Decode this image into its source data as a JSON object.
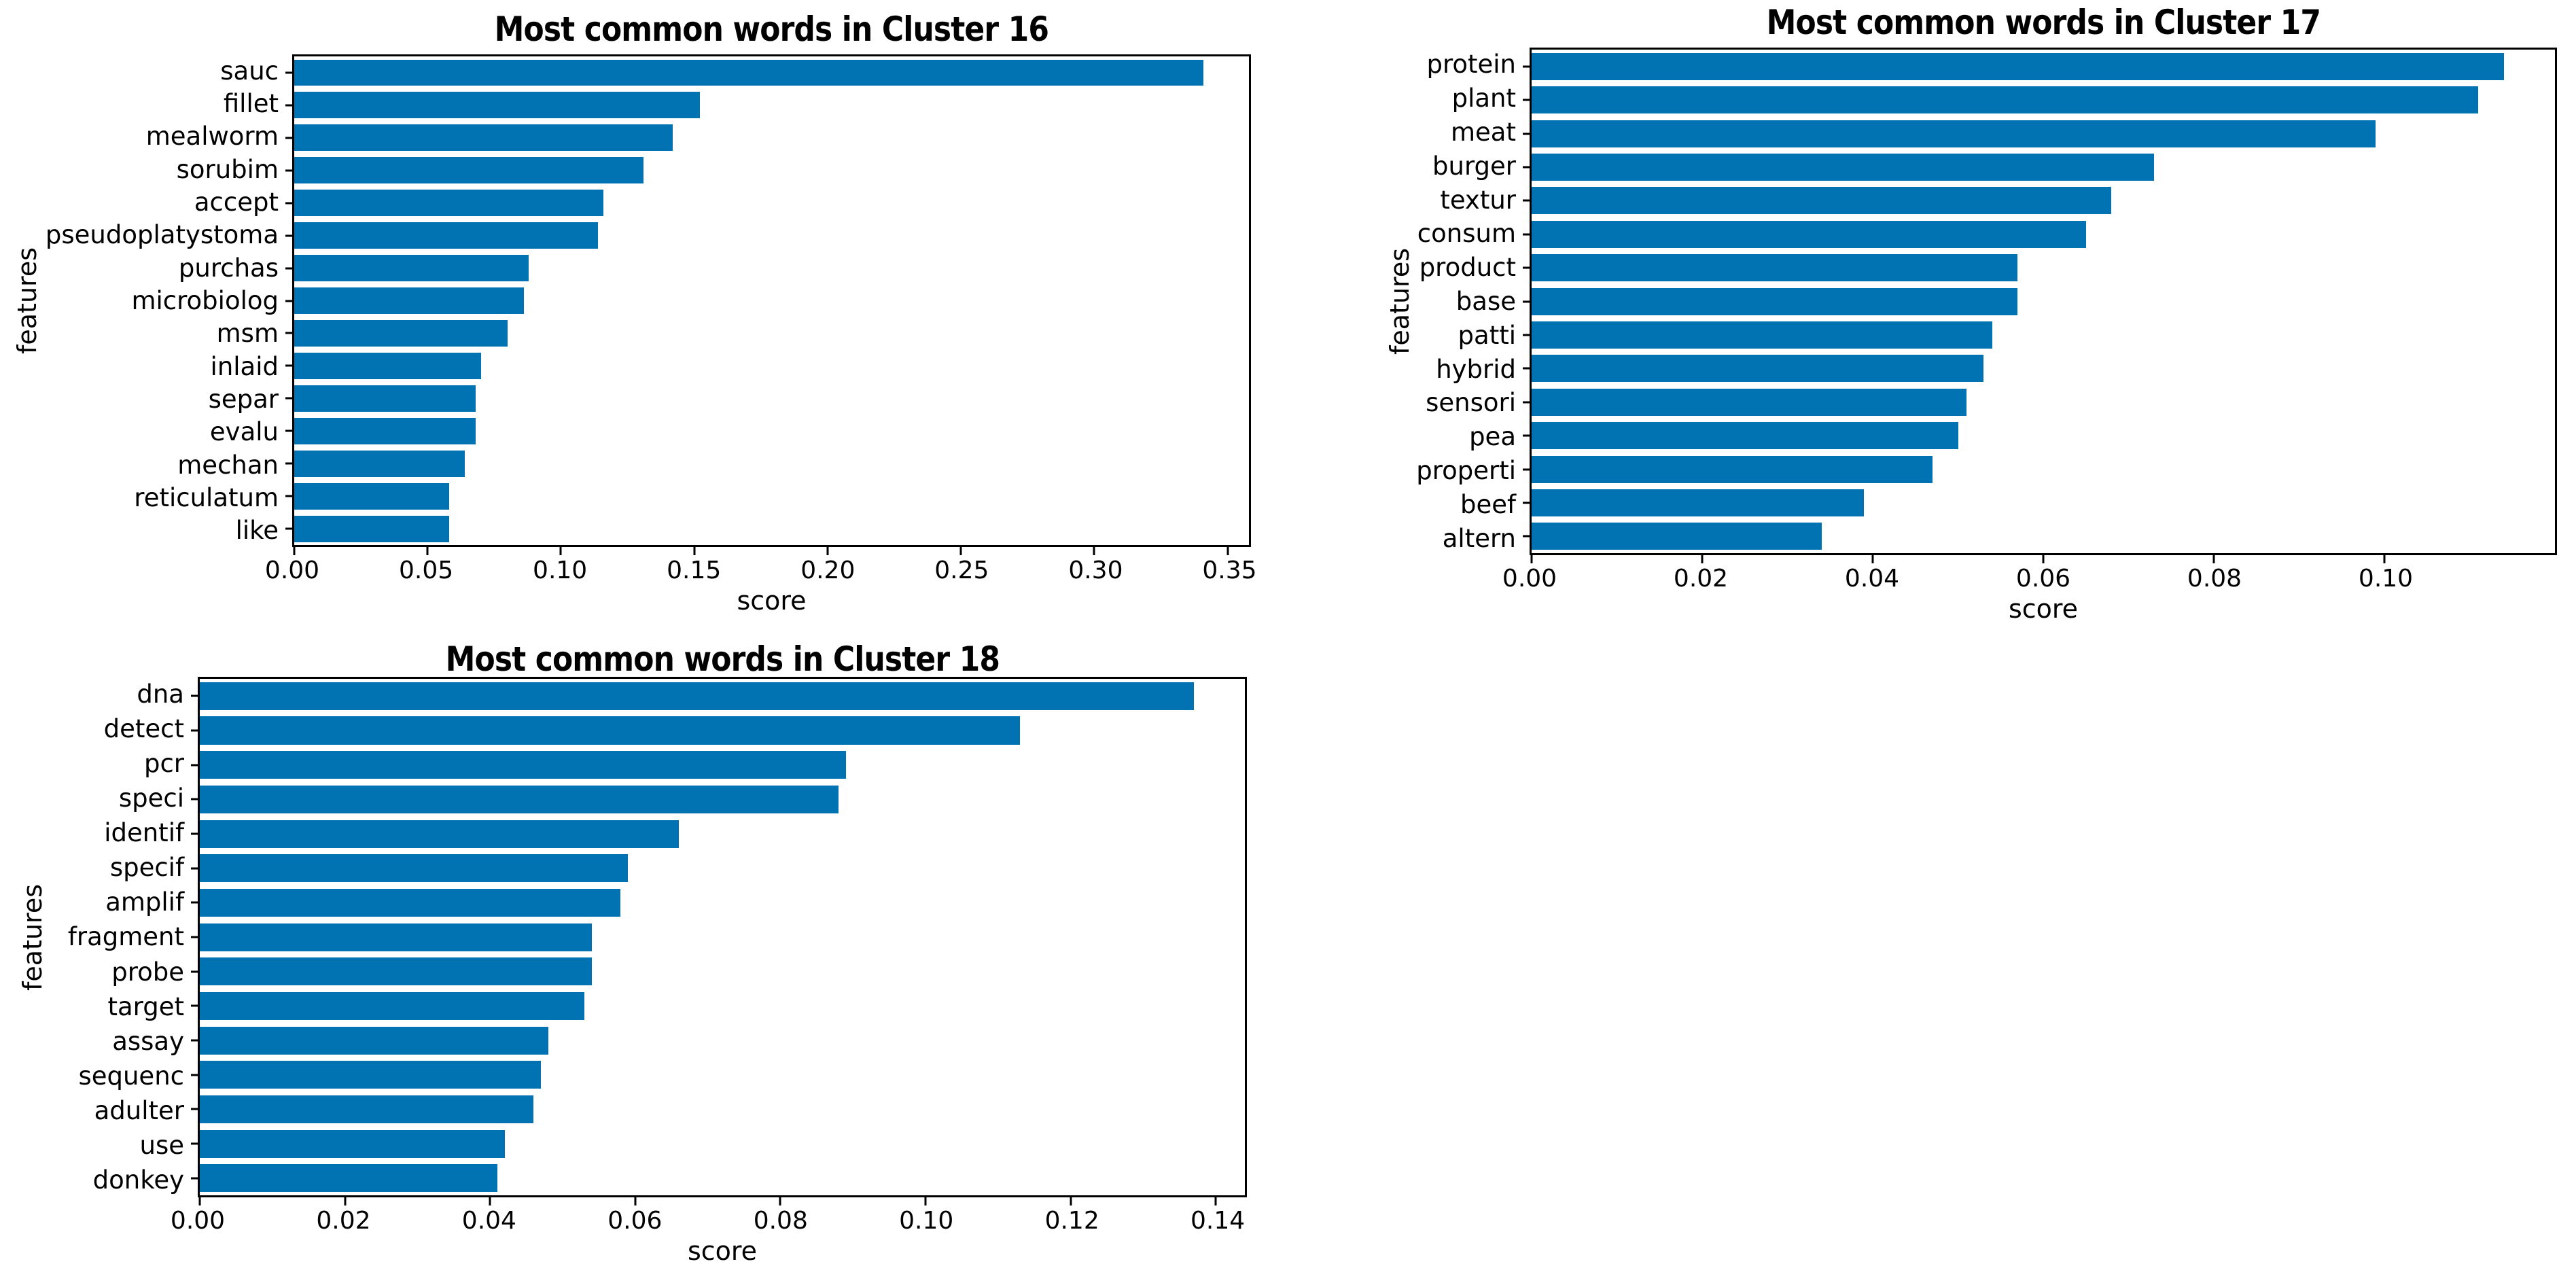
{
  "figure": {
    "background": "#ffffff",
    "text_color": "#000000",
    "bar_color": "#0173b2"
  },
  "chart_data": [
    {
      "type": "bar",
      "orientation": "horizontal",
      "position": "top-left",
      "title": "Most common words in Cluster 16",
      "xlabel": "score",
      "ylabel": "features",
      "bar_color": "#0173b2",
      "grid": false,
      "legend": null,
      "categories": [
        "sauc",
        "fillet",
        "mealworm",
        "sorubim",
        "accept",
        "pseudoplatystoma",
        "purchas",
        "microbiolog",
        "msm",
        "inlaid",
        "separ",
        "evalu",
        "mechan",
        "reticulatum",
        "like"
      ],
      "values": [
        0.341,
        0.152,
        0.142,
        0.131,
        0.116,
        0.114,
        0.088,
        0.086,
        0.08,
        0.07,
        0.068,
        0.068,
        0.064,
        0.058,
        0.058
      ],
      "xlim": [
        0,
        0.358
      ],
      "xticks": [
        "0.00",
        "0.05",
        "0.10",
        "0.15",
        "0.20",
        "0.25",
        "0.30",
        "0.35"
      ]
    },
    {
      "type": "bar",
      "orientation": "horizontal",
      "position": "top-right",
      "title": "Most common words in Cluster 17",
      "xlabel": "score",
      "ylabel": "features",
      "bar_color": "#0173b2",
      "grid": false,
      "legend": null,
      "categories": [
        "protein",
        "plant",
        "meat",
        "burger",
        "textur",
        "consum",
        "product",
        "base",
        "patti",
        "hybrid",
        "sensori",
        "pea",
        "properti",
        "beef",
        "altern"
      ],
      "values": [
        0.114,
        0.111,
        0.099,
        0.073,
        0.068,
        0.065,
        0.057,
        0.057,
        0.054,
        0.053,
        0.051,
        0.05,
        0.047,
        0.039,
        0.034
      ],
      "xlim": [
        0,
        0.12
      ],
      "xticks": [
        "0.00",
        "0.02",
        "0.04",
        "0.06",
        "0.08",
        "0.10"
      ]
    },
    {
      "type": "bar",
      "orientation": "horizontal",
      "position": "bottom-left",
      "title": "Most common words in Cluster 18",
      "xlabel": "score",
      "ylabel": "features",
      "bar_color": "#0173b2",
      "grid": false,
      "legend": null,
      "categories": [
        "dna",
        "detect",
        "pcr",
        "speci",
        "identif",
        "specif",
        "amplif",
        "fragment",
        "probe",
        "target",
        "assay",
        "sequenc",
        "adulter",
        "use",
        "donkey"
      ],
      "values": [
        0.137,
        0.113,
        0.089,
        0.088,
        0.066,
        0.059,
        0.058,
        0.054,
        0.054,
        0.053,
        0.048,
        0.047,
        0.046,
        0.042,
        0.041
      ],
      "xlim": [
        0,
        0.144
      ],
      "xticks": [
        "0.00",
        "0.02",
        "0.04",
        "0.06",
        "0.08",
        "0.10",
        "0.12",
        "0.14"
      ]
    }
  ]
}
